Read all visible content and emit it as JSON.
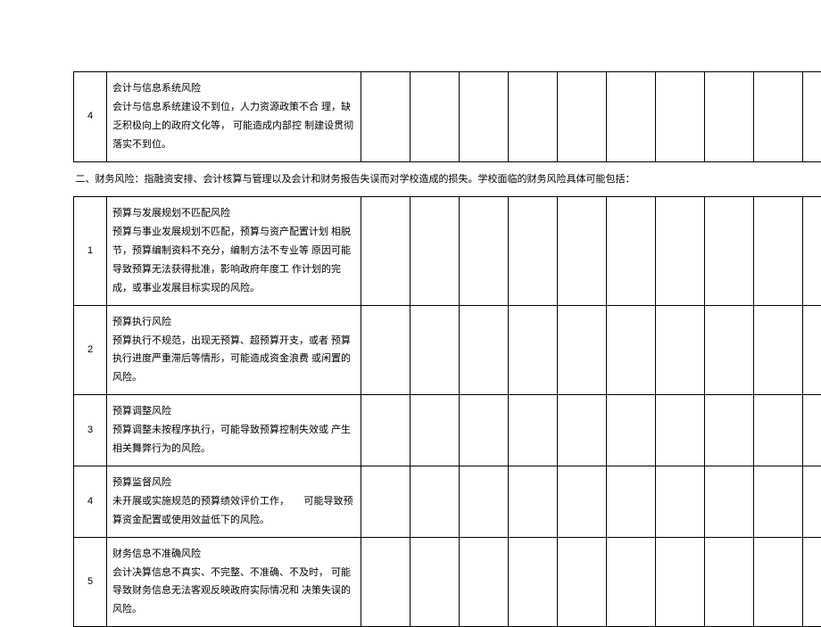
{
  "section1": {
    "rows": [
      {
        "num": "4",
        "title": "会计与信息系统风险",
        "body": "会计与信息系统建设不到位，人力资源政策不合 理，缺乏积极向上的政府文化等， 可能造成内部控 制建设贯彻落实不到位。"
      }
    ]
  },
  "section2_header": "二、财务风险：指融资安排、会计核算与管理以及会计和财务报告失误而对学校造成的损失。学校面临的财务风险具体可能包括：",
  "section2": {
    "rows": [
      {
        "num": "1",
        "title": "预算与发展规划不匹配风险",
        "body": "预算与事业发展规划不匹配，预算与资产配置计划 相脱节，预算编制资料不充分，编制方法不专业等 原因可能导致预算无法获得批准，影响政府年度工 作计划的完成，或事业发展目标实现的风险。"
      },
      {
        "num": "2",
        "title": "预算执行风险",
        "body": "预算执行不规范，出现无预算、超预算开支，或者 预算执行进度严重滞后等情形，可能造成资金浪费 或闲置的风险。"
      },
      {
        "num": "3",
        "title": "预算调整风险",
        "body": "预算调整未按程序执行，可能导致预算控制失效或 产生相关舞弊行为的风险。"
      },
      {
        "num": "4",
        "title": "预算监督风险",
        "body": "未开展或实施规范的预算绩效评价工作，　　可能导致预算资金配置或使用效益低下的风险。"
      },
      {
        "num": "5",
        "title": "财务信息不准确风险",
        "body": "会计决算信息不真实、不完整、不准确、不及时， 可能导致财务信息无法客观反映政府实际情况和 决策失误的风险。"
      }
    ]
  },
  "empty_cols": 11,
  "colors": {
    "border": "#000000",
    "text": "#000000",
    "background": "#ffffff"
  }
}
